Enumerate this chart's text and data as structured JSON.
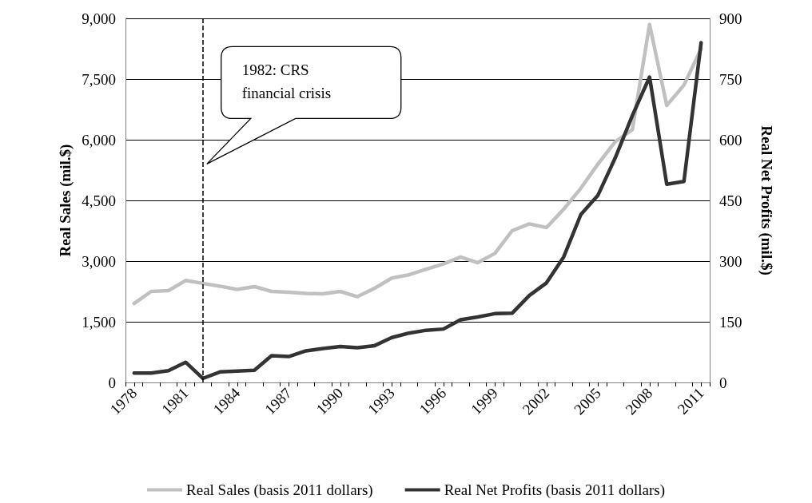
{
  "chart_data": {
    "type": "line",
    "x": [
      1978,
      1979,
      1980,
      1981,
      1982,
      1983,
      1984,
      1985,
      1986,
      1987,
      1988,
      1989,
      1990,
      1991,
      1992,
      1993,
      1994,
      1995,
      1996,
      1997,
      1998,
      1999,
      2000,
      2001,
      2002,
      2003,
      2004,
      2005,
      2006,
      2007,
      2008,
      2009,
      2010,
      2011
    ],
    "ylabel": "Real Sales (mil.$)",
    "y2label": "Real Net Profits (mil.$)",
    "series": [
      {
        "name": "Real Sales (basis 2011 dollars)",
        "color": "#c0c0c0",
        "values": [
          1950,
          2250,
          2270,
          2520,
          2450,
          2380,
          2300,
          2370,
          2250,
          2230,
          2200,
          2190,
          2250,
          2120,
          2330,
          2580,
          2660,
          2800,
          2930,
          3100,
          2960,
          3190,
          3750,
          3920,
          3830,
          4280,
          4800,
          5400,
          5950,
          6250,
          8850,
          6850,
          7350,
          8250
        ]
      },
      {
        "name": "Real Net Profits (basis 2011 dollars)",
        "color": "#333333",
        "axis": "y2",
        "values": [
          23,
          23,
          29,
          50,
          10,
          26,
          28,
          30,
          66,
          64,
          78,
          84,
          89,
          86,
          91,
          111,
          122,
          129,
          132,
          155,
          162,
          170,
          171,
          215,
          246,
          310,
          415,
          463,
          555,
          660,
          755,
          490,
          497,
          840
        ]
      }
    ],
    "xlim": [
      1977.5,
      2011.5
    ],
    "xticks": [
      {
        "value": 1977.5,
        "label": null
      },
      1978,
      {
        "value": 1978.5,
        "label": null
      },
      {
        "value": 1979.5,
        "label": null
      },
      {
        "value": 1980.5,
        "label": null
      },
      1981,
      {
        "value": 1981.5,
        "label": null
      },
      {
        "value": 1982.5,
        "label": null
      },
      {
        "value": 1983.5,
        "label": null
      },
      1984,
      {
        "value": 1984.5,
        "label": null
      },
      {
        "value": 1985.5,
        "label": null
      },
      {
        "value": 1986.5,
        "label": null
      },
      1987,
      {
        "value": 1987.5,
        "label": null
      },
      {
        "value": 1988.5,
        "label": null
      },
      {
        "value": 1989.5,
        "label": null
      },
      1990,
      {
        "value": 1990.5,
        "label": null
      },
      {
        "value": 1991.5,
        "label": null
      },
      {
        "value": 1992.5,
        "label": null
      },
      1993,
      {
        "value": 1993.5,
        "label": null
      },
      {
        "value": 1994.5,
        "label": null
      },
      {
        "value": 1995.5,
        "label": null
      },
      1996,
      {
        "value": 1996.5,
        "label": null
      },
      {
        "value": 1997.5,
        "label": null
      },
      {
        "value": 1998.5,
        "label": null
      },
      1999,
      {
        "value": 1999.5,
        "label": null
      },
      {
        "value": 2000.5,
        "label": null
      },
      {
        "value": 2001.5,
        "label": null
      },
      2002,
      {
        "value": 2002.5,
        "label": null
      },
      {
        "value": 2003.5,
        "label": null
      },
      {
        "value": 2004.5,
        "label": null
      },
      2005,
      {
        "value": 2005.5,
        "label": null
      },
      {
        "value": 2006.5,
        "label": null
      },
      {
        "value": 2007.5,
        "label": null
      },
      2008,
      {
        "value": 2008.5,
        "label": null
      },
      {
        "value": 2009.5,
        "label": null
      },
      {
        "value": 2010.5,
        "label": null
      },
      2011,
      {
        "value": 2011.5,
        "label": null
      }
    ],
    "ylim": [
      0,
      9000
    ],
    "yticks": [
      0,
      {
        "value": 1500,
        "label": "1,500"
      },
      {
        "value": 3000,
        "label": "3,000"
      },
      {
        "value": 4500,
        "label": "4,500"
      },
      {
        "value": 6000,
        "label": "6,000"
      },
      {
        "value": 7500,
        "label": "7,500"
      },
      {
        "value": 9000,
        "label": "9,000"
      }
    ],
    "y2lim": [
      0,
      900
    ],
    "y2ticks": [
      0,
      150,
      300,
      450,
      600,
      750,
      900
    ],
    "ref_lines": [
      {
        "axis": "x",
        "value": 1982,
        "label": "1982: CRS\nfinancial crisis",
        "line_style": "dashed",
        "color": "#000000"
      }
    ],
    "grid": "y",
    "legend": "bottom",
    "marker": "none",
    "line_style": "solid"
  }
}
